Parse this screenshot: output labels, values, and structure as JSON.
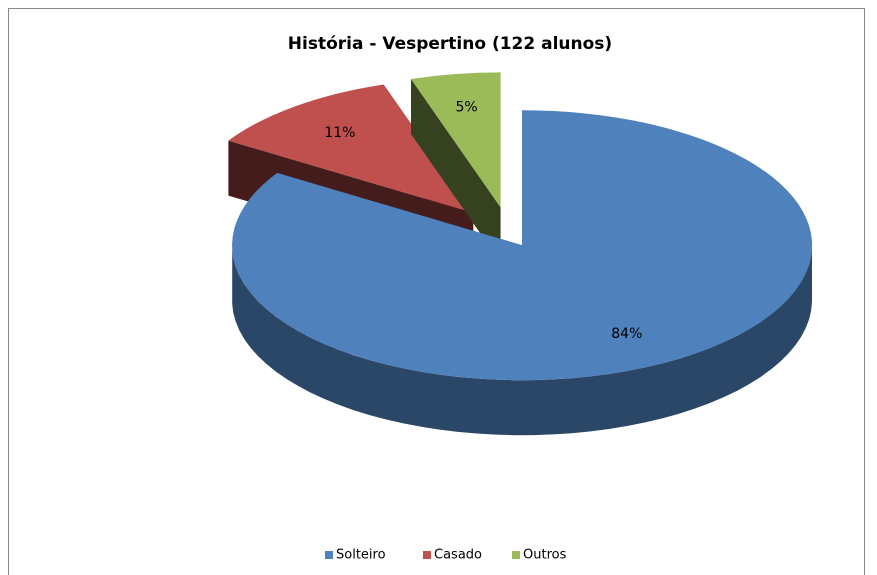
{
  "chart_data": {
    "type": "pie3d",
    "title": "História - Vespertino (122 alunos)",
    "categories": [
      "Solteiro",
      "Casado",
      "Outros"
    ],
    "values": [
      84,
      11,
      5
    ],
    "value_labels": [
      "84%",
      "11%",
      "5%"
    ],
    "colors": [
      "#4f81bd",
      "#c0504d",
      "#9bbb59"
    ],
    "legend": "bottom"
  }
}
